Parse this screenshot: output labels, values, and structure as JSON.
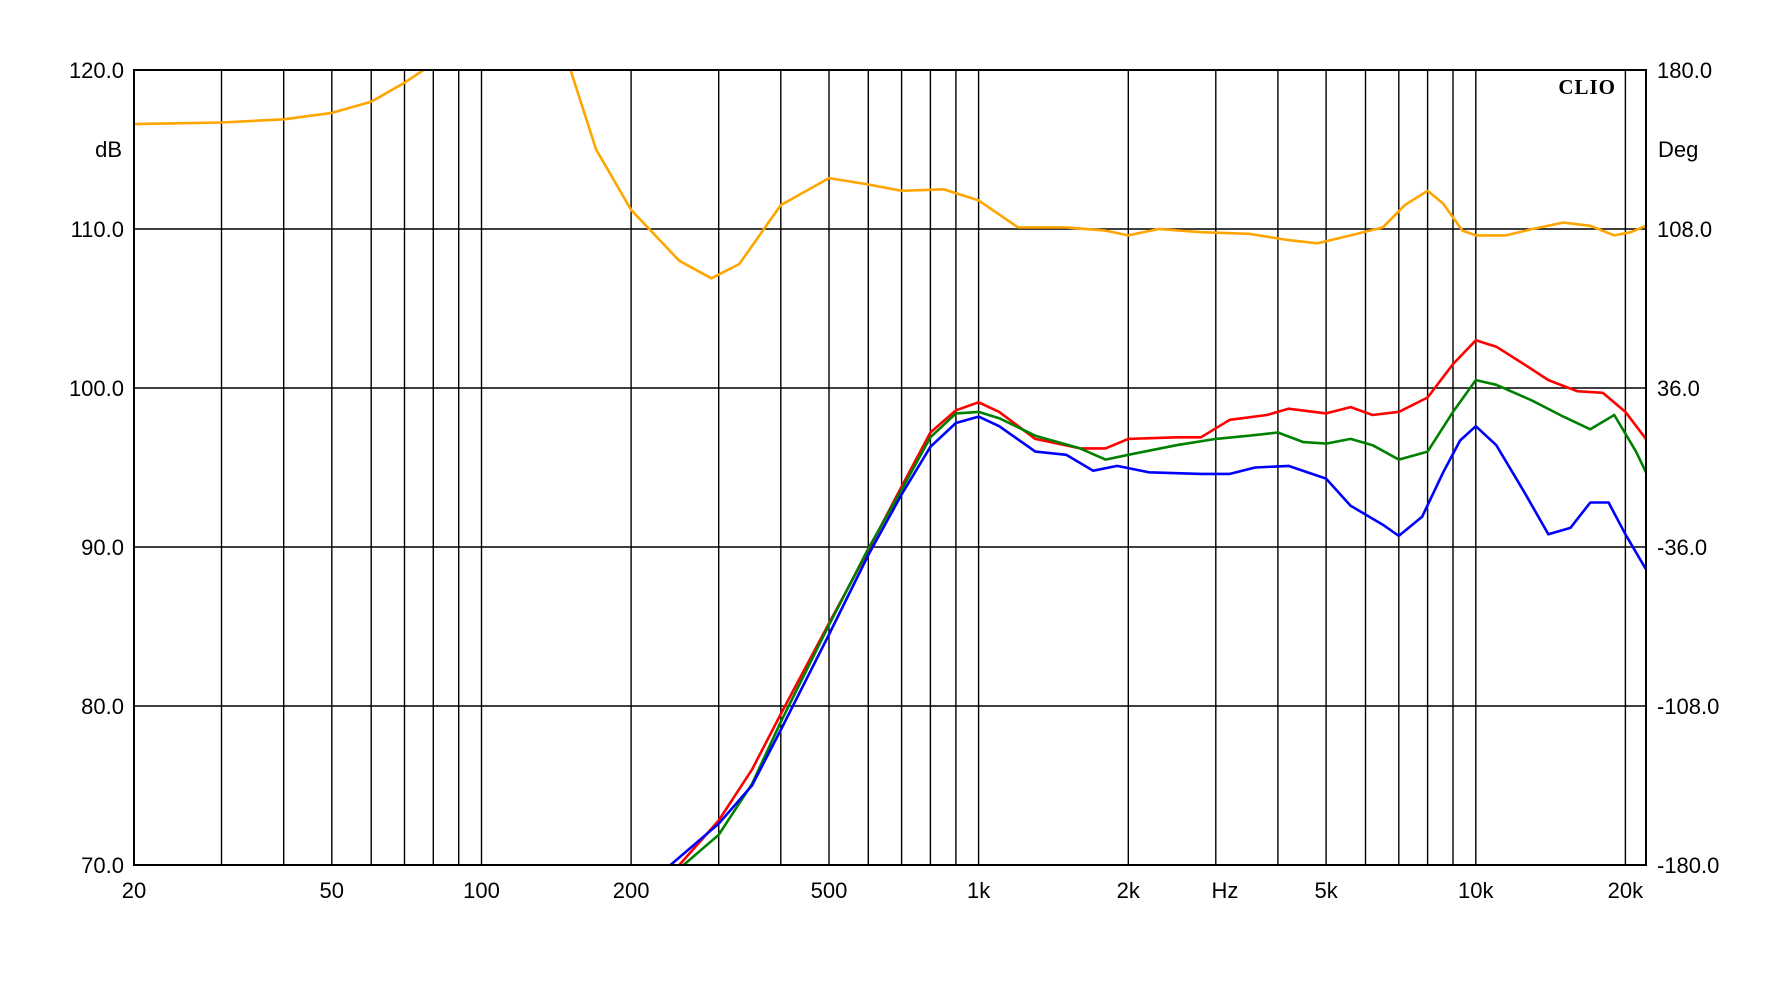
{
  "chart_data": {
    "type": "line",
    "brand": "CLIO",
    "xlabel": "Hz",
    "ylabel_left": "dB",
    "ylabel_right": "Deg",
    "xscale": "log",
    "xlim": [
      20,
      22000
    ],
    "ylim_left": [
      70,
      120
    ],
    "ylim_right": [
      -180,
      180
    ],
    "grid": true,
    "x_ticks": [
      {
        "value": 20,
        "label": "20"
      },
      {
        "value": 50,
        "label": "50"
      },
      {
        "value": 100,
        "label": "100"
      },
      {
        "value": 200,
        "label": "200"
      },
      {
        "value": 500,
        "label": "500"
      },
      {
        "value": 1000,
        "label": "1k"
      },
      {
        "value": 2000,
        "label": "2k"
      },
      {
        "value": 5000,
        "label": "5k"
      },
      {
        "value": 10000,
        "label": "10k"
      },
      {
        "value": 20000,
        "label": "20k"
      }
    ],
    "x_grid": [
      20,
      30,
      40,
      50,
      60,
      70,
      80,
      90,
      100,
      200,
      300,
      400,
      500,
      600,
      700,
      800,
      900,
      1000,
      2000,
      3000,
      4000,
      5000,
      6000,
      7000,
      8000,
      9000,
      10000,
      20000
    ],
    "y_ticks_left": [
      {
        "value": 70,
        "label": "70.0"
      },
      {
        "value": 80,
        "label": "80.0"
      },
      {
        "value": 90,
        "label": "90.0"
      },
      {
        "value": 100,
        "label": "100.0"
      },
      {
        "value": 110,
        "label": "110.0"
      },
      {
        "value": 120,
        "label": "120.0"
      }
    ],
    "y_ticks_right": [
      {
        "value": -180,
        "label": "-180.0"
      },
      {
        "value": -108,
        "label": "-108.0"
      },
      {
        "value": -36,
        "label": "-36.0"
      },
      {
        "value": 36,
        "label": "36.0"
      },
      {
        "value": 108,
        "label": "108.0"
      },
      {
        "value": 180,
        "label": "180.0"
      }
    ],
    "series": [
      {
        "color": "#ffa500",
        "axis": "left",
        "points": [
          [
            20,
            116.6
          ],
          [
            30,
            116.7
          ],
          [
            40,
            116.9
          ],
          [
            50,
            117.3
          ],
          [
            60,
            118
          ],
          [
            70,
            119.2
          ],
          [
            80,
            120.4
          ],
          [
            150,
            120.3
          ],
          [
            170,
            115
          ],
          [
            200,
            111.2
          ],
          [
            250,
            108
          ],
          [
            290,
            106.9
          ],
          [
            330,
            107.8
          ],
          [
            400,
            111.5
          ],
          [
            500,
            113.2
          ],
          [
            600,
            112.8
          ],
          [
            700,
            112.4
          ],
          [
            850,
            112.5
          ],
          [
            1000,
            111.8
          ],
          [
            1200,
            110.1
          ],
          [
            1500,
            110.1
          ],
          [
            1800,
            109.9
          ],
          [
            2000,
            109.6
          ],
          [
            2300,
            110
          ],
          [
            2800,
            109.8
          ],
          [
            3500,
            109.7
          ],
          [
            4200,
            109.3
          ],
          [
            4800,
            109.1
          ],
          [
            5600,
            109.6
          ],
          [
            6500,
            110.1
          ],
          [
            7200,
            111.5
          ],
          [
            8000,
            112.4
          ],
          [
            8600,
            111.6
          ],
          [
            9400,
            109.9
          ],
          [
            10000,
            109.6
          ],
          [
            11500,
            109.6
          ],
          [
            13000,
            110
          ],
          [
            15000,
            110.4
          ],
          [
            17000,
            110.2
          ],
          [
            19000,
            109.6
          ],
          [
            20500,
            109.8
          ],
          [
            22000,
            110.2
          ]
        ]
      },
      {
        "color": "#ff0000",
        "axis": "left",
        "points": [
          [
            250,
            70
          ],
          [
            300,
            72.8
          ],
          [
            350,
            76
          ],
          [
            400,
            79.5
          ],
          [
            500,
            85.2
          ],
          [
            600,
            89.8
          ],
          [
            700,
            93.8
          ],
          [
            800,
            97.2
          ],
          [
            900,
            98.6
          ],
          [
            1000,
            99.1
          ],
          [
            1100,
            98.5
          ],
          [
            1300,
            96.8
          ],
          [
            1600,
            96.2
          ],
          [
            1800,
            96.2
          ],
          [
            2000,
            96.8
          ],
          [
            2500,
            96.9
          ],
          [
            2800,
            96.9
          ],
          [
            3200,
            98
          ],
          [
            3800,
            98.3
          ],
          [
            4200,
            98.7
          ],
          [
            5000,
            98.4
          ],
          [
            5600,
            98.8
          ],
          [
            6200,
            98.3
          ],
          [
            7000,
            98.5
          ],
          [
            8000,
            99.4
          ],
          [
            9000,
            101.5
          ],
          [
            10000,
            103
          ],
          [
            11000,
            102.6
          ],
          [
            12500,
            101.5
          ],
          [
            14000,
            100.5
          ],
          [
            16000,
            99.8
          ],
          [
            18000,
            99.7
          ],
          [
            20000,
            98.5
          ],
          [
            22000,
            96.8
          ]
        ]
      },
      {
        "color": "#008000",
        "axis": "left",
        "points": [
          [
            255,
            70
          ],
          [
            300,
            71.9
          ],
          [
            350,
            75.1
          ],
          [
            400,
            79
          ],
          [
            500,
            85.1
          ],
          [
            600,
            89.9
          ],
          [
            700,
            93.6
          ],
          [
            800,
            96.9
          ],
          [
            900,
            98.4
          ],
          [
            1000,
            98.5
          ],
          [
            1100,
            98.1
          ],
          [
            1300,
            97
          ],
          [
            1600,
            96.2
          ],
          [
            1800,
            95.5
          ],
          [
            2000,
            95.8
          ],
          [
            2500,
            96.4
          ],
          [
            3000,
            96.8
          ],
          [
            3500,
            97
          ],
          [
            4000,
            97.2
          ],
          [
            4500,
            96.6
          ],
          [
            5000,
            96.5
          ],
          [
            5600,
            96.8
          ],
          [
            6200,
            96.4
          ],
          [
            7000,
            95.5
          ],
          [
            8000,
            96
          ],
          [
            9000,
            98.5
          ],
          [
            10000,
            100.5
          ],
          [
            11000,
            100.2
          ],
          [
            13000,
            99.2
          ],
          [
            15000,
            98.2
          ],
          [
            17000,
            97.4
          ],
          [
            19000,
            98.3
          ],
          [
            21000,
            96
          ],
          [
            22000,
            94.7
          ]
        ]
      },
      {
        "color": "#0000ff",
        "axis": "left",
        "points": [
          [
            240,
            70
          ],
          [
            300,
            72.6
          ],
          [
            350,
            75
          ],
          [
            400,
            78.5
          ],
          [
            500,
            84.5
          ],
          [
            600,
            89.5
          ],
          [
            700,
            93.3
          ],
          [
            800,
            96.3
          ],
          [
            900,
            97.8
          ],
          [
            1000,
            98.2
          ],
          [
            1100,
            97.6
          ],
          [
            1300,
            96
          ],
          [
            1500,
            95.8
          ],
          [
            1700,
            94.8
          ],
          [
            1900,
            95.1
          ],
          [
            2200,
            94.7
          ],
          [
            2800,
            94.6
          ],
          [
            3200,
            94.6
          ],
          [
            3600,
            95
          ],
          [
            4200,
            95.1
          ],
          [
            5000,
            94.3
          ],
          [
            5600,
            92.6
          ],
          [
            6500,
            91.4
          ],
          [
            7000,
            90.7
          ],
          [
            7800,
            91.9
          ],
          [
            8600,
            94.7
          ],
          [
            9300,
            96.7
          ],
          [
            10000,
            97.6
          ],
          [
            11000,
            96.4
          ],
          [
            12500,
            93.5
          ],
          [
            14000,
            90.8
          ],
          [
            15500,
            91.2
          ],
          [
            17000,
            92.8
          ],
          [
            18500,
            92.8
          ],
          [
            20000,
            90.8
          ],
          [
            22000,
            88.6
          ]
        ]
      }
    ]
  }
}
